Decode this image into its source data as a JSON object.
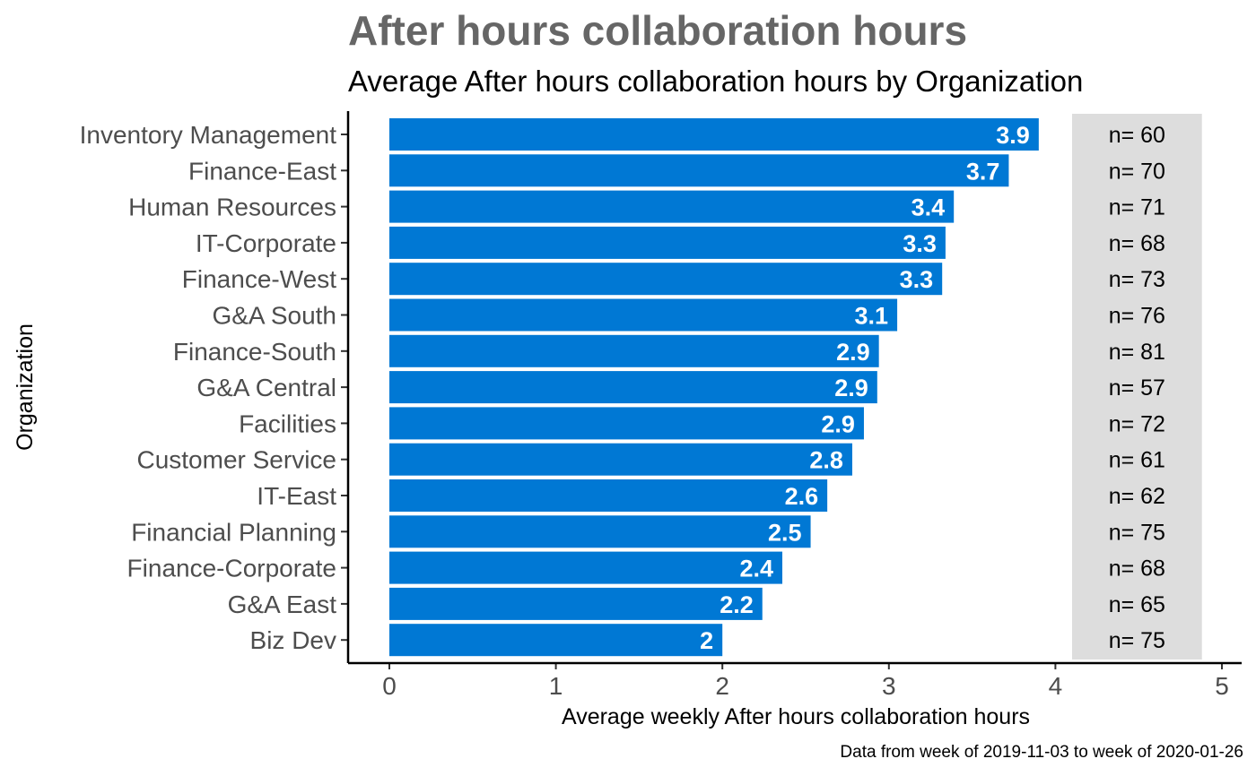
{
  "chart_data": {
    "type": "bar",
    "orientation": "horizontal",
    "title": "After hours collaboration hours",
    "subtitle": "Average After hours collaboration hours by Organization",
    "xlabel": "Average weekly After hours collaboration hours",
    "ylabel": "Organization",
    "caption": "Data from week of 2019-11-03 to week of 2020-01-26",
    "xlim": [
      0,
      5
    ],
    "x_ticks": [
      "0",
      "1",
      "2",
      "3",
      "4",
      "5"
    ],
    "grid": false,
    "legend": "none",
    "categories": [
      "Inventory Management",
      "Finance-East",
      "Human Resources",
      "IT-Corporate",
      "Finance-West",
      "G&A South",
      "Finance-South",
      "G&A Central",
      "Facilities",
      "Customer Service",
      "IT-East",
      "Financial Planning",
      "Finance-Corporate",
      "G&A East",
      "Biz Dev"
    ],
    "values": [
      3.9,
      3.72,
      3.39,
      3.34,
      3.32,
      3.05,
      2.94,
      2.93,
      2.85,
      2.78,
      2.63,
      2.53,
      2.36,
      2.24,
      2.0
    ],
    "value_labels": [
      "3.9",
      "3.7",
      "3.4",
      "3.3",
      "3.3",
      "3.1",
      "2.9",
      "2.9",
      "2.9",
      "2.8",
      "2.6",
      "2.5",
      "2.4",
      "2.2",
      "2"
    ],
    "counts": [
      "n= 60",
      "n= 70",
      "n= 71",
      "n= 68",
      "n= 73",
      "n= 76",
      "n= 81",
      "n= 57",
      "n= 72",
      "n= 61",
      "n= 62",
      "n= 75",
      "n= 68",
      "n= 65",
      "n= 75"
    ],
    "count_panel_range": [
      4.1,
      4.88
    ],
    "colors": {
      "bar": "#0078d4",
      "count_panel": "#dddddd",
      "title": "#666666"
    }
  }
}
